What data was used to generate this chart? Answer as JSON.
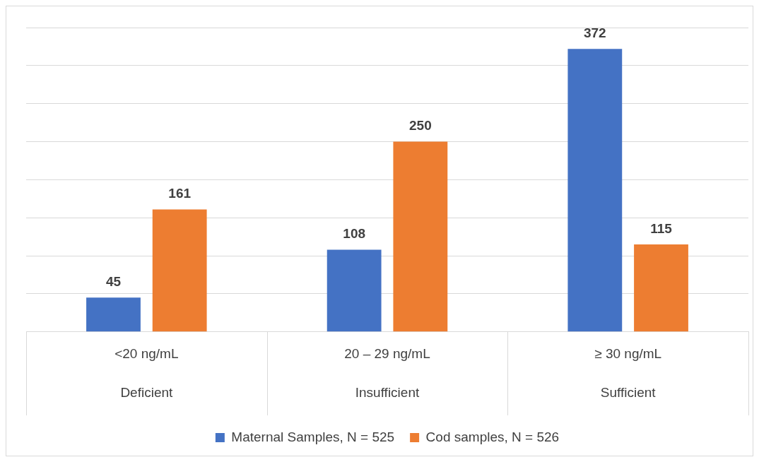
{
  "chart_data": {
    "type": "bar",
    "categories": [
      "<20 ng/mL\nDeficient",
      "20 – 29 ng/mL\nInsufficient",
      "≥ 30 ng/mL\nSufficient"
    ],
    "series": [
      {
        "name": "Maternal Samples, N = 525",
        "color": "#4472c4",
        "values": [
          45,
          108,
          372
        ]
      },
      {
        "name": "Cod samples, N = 526",
        "color": "#ed7d31",
        "values": [
          161,
          250,
          115
        ]
      }
    ],
    "ylim": [
      0,
      400
    ],
    "yticks": [
      {
        "value": 0,
        "label": null
      },
      {
        "value": 50,
        "label": null
      },
      {
        "value": 100,
        "label": null
      },
      {
        "value": 150,
        "label": null
      },
      {
        "value": 200,
        "label": null
      },
      {
        "value": 250,
        "label": null
      },
      {
        "value": 300,
        "label": null
      },
      {
        "value": 350,
        "label": null
      },
      {
        "value": 400,
        "label": null
      }
    ],
    "tick_labels": "x",
    "grid": "y",
    "legend": "bottom",
    "data_labels": true
  }
}
